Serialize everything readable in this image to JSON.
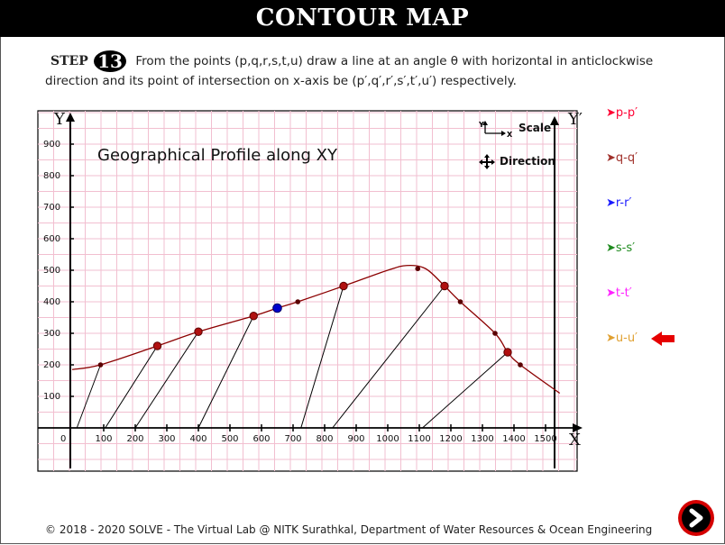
{
  "header": {
    "title": "CONTOUR MAP"
  },
  "step": {
    "label": "STEP",
    "number": "13",
    "instruction": "From the points (p,q,r,s,t,u) draw a line at an angle θ with horizontal in anticlockwise direction and its point of intersection on x-axis be (p′,q′,r′,s′,t′,u′) respectively."
  },
  "graph": {
    "title": "Geographical Profile along XY",
    "axis_labels": {
      "y": "Y",
      "y_prime": "Y′",
      "x": "X",
      "origin": "0"
    },
    "y_ticks": [
      "100",
      "200",
      "300",
      "400",
      "500",
      "600",
      "700",
      "800",
      "900"
    ],
    "x_ticks": [
      "100",
      "200",
      "300",
      "400",
      "500",
      "600",
      "700",
      "800",
      "900",
      "1000",
      "1100",
      "1200",
      "1300",
      "1400",
      "1500"
    ],
    "scale_icon": {
      "label": "Scale",
      "y": "Y",
      "x": "X",
      "icon": "axes-icon"
    },
    "direction_icon": {
      "label": "Direction",
      "icon": "compass-icon"
    },
    "colors": {
      "grid": "#f2bfd0",
      "profile": "#8b0000",
      "projection": "#000000",
      "highlight_point": "#0000cc"
    }
  },
  "chart_data": {
    "type": "line",
    "title": "Geographical Profile along XY",
    "xlim": [
      0,
      1600
    ],
    "ylim": [
      0,
      900
    ],
    "profile": {
      "x": [
        0,
        90,
        270,
        400,
        575,
        650,
        715,
        860,
        1000,
        1060,
        1120,
        1180,
        1230,
        1340,
        1380,
        1420,
        1545
      ],
      "y": [
        185,
        200,
        260,
        305,
        355,
        380,
        400,
        450,
        500,
        515,
        505,
        450,
        400,
        300,
        240,
        200,
        110
      ]
    },
    "intersection_points": [
      {
        "x": 270,
        "y": 260
      },
      {
        "x": 400,
        "y": 305
      },
      {
        "x": 575,
        "y": 355
      },
      {
        "x": 860,
        "y": 450
      },
      {
        "x": 1180,
        "y": 450
      },
      {
        "x": 1380,
        "y": 240
      }
    ],
    "marked_points": [
      {
        "x": 90,
        "y": 200
      },
      {
        "x": 715,
        "y": 400
      },
      {
        "x": 1095,
        "y": 505
      },
      {
        "x": 1230,
        "y": 400
      },
      {
        "x": 1340,
        "y": 300
      },
      {
        "x": 1420,
        "y": 200
      }
    ],
    "highlight_point": {
      "x": 650,
      "y": 380
    },
    "projection_lines": [
      {
        "from": [
          90,
          200
        ],
        "to": [
          15,
          0
        ]
      },
      {
        "from": [
          270,
          260
        ],
        "to": [
          105,
          0
        ]
      },
      {
        "from": [
          400,
          305
        ],
        "to": [
          200,
          0
        ]
      },
      {
        "from": [
          575,
          355
        ],
        "to": [
          400,
          0
        ]
      },
      {
        "from": [
          860,
          450
        ],
        "to": [
          725,
          0
        ]
      },
      {
        "from": [
          1180,
          450
        ],
        "to": [
          825,
          0
        ]
      },
      {
        "from": [
          1380,
          240
        ],
        "to": [
          1110,
          0
        ]
      }
    ]
  },
  "legend": [
    {
      "label": "➤p-p′",
      "color": "#ff0033"
    },
    {
      "label": "➤q-q′",
      "color": "#a0302a"
    },
    {
      "label": "➤r-r′",
      "color": "#1a1aff"
    },
    {
      "label": "➤s-s′",
      "color": "#1e8a1e"
    },
    {
      "label": "➤t-t′",
      "color": "#ff22ff"
    },
    {
      "label": "➤u-u′",
      "color": "#e0a030"
    }
  ],
  "current_indicator": {
    "icon": "left-arrow-icon",
    "color": "#e60000"
  },
  "footer": {
    "text": "© 2018 - 2020 SOLVE - The Virtual Lab @ NITK Surathkal, Department of Water Resources & Ocean Engineering"
  },
  "next_button": {
    "icon": "next-arrow-icon"
  }
}
